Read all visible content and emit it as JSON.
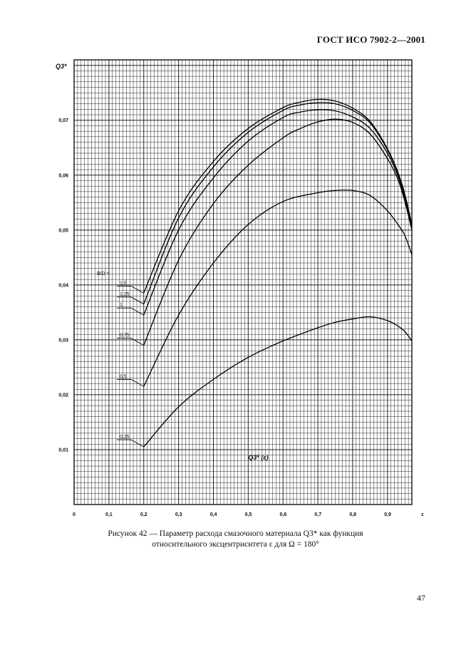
{
  "header": {
    "standard": "ГОСТ ИСО 7902-2—2001"
  },
  "caption": {
    "line1": "Рисунок 42 — Параметр расхода смазочного материала Q3* как функция",
    "line2": "относительного эксцентриситета ε для Ω = 180°"
  },
  "page_number": "47",
  "chart_data": {
    "type": "line",
    "ylabel": "Q3*",
    "xlabel": "ε",
    "curve_label": "Q3* (ε)",
    "legend_title": "B/D =",
    "xlim": [
      0,
      0.97
    ],
    "ylim": [
      0,
      0.081
    ],
    "x_ticks": [
      "0",
      "0,1",
      "0,2",
      "0,3",
      "0,4",
      "0,5",
      "0,6",
      "0,7",
      "0,8",
      "0,9",
      "ε"
    ],
    "y_ticks": [
      "0,01",
      "0,02",
      "0,03",
      "0,04",
      "0,05",
      "0,06",
      "0,07"
    ],
    "grid": true,
    "series": [
      {
        "name": "1,5",
        "x": [
          0.2,
          0.3,
          0.4,
          0.5,
          0.6,
          0.65,
          0.7,
          0.75,
          0.8,
          0.85,
          0.9,
          0.93,
          0.95,
          0.97
        ],
        "y": [
          0.0385,
          0.0535,
          0.0625,
          0.0685,
          0.0723,
          0.0733,
          0.0738,
          0.0735,
          0.0722,
          0.0698,
          0.0648,
          0.0605,
          0.0565,
          0.051
        ]
      },
      {
        "name": "1,25",
        "x": [
          0.2,
          0.3,
          0.4,
          0.5,
          0.6,
          0.65,
          0.7,
          0.75,
          0.8,
          0.85,
          0.9,
          0.93,
          0.95,
          0.97
        ],
        "y": [
          0.0365,
          0.0522,
          0.0615,
          0.0678,
          0.0718,
          0.0728,
          0.0732,
          0.073,
          0.0718,
          0.0695,
          0.0646,
          0.0603,
          0.0563,
          0.0508
        ]
      },
      {
        "name": "1",
        "x": [
          0.2,
          0.3,
          0.4,
          0.5,
          0.6,
          0.65,
          0.7,
          0.75,
          0.8,
          0.85,
          0.9,
          0.93,
          0.95,
          0.97
        ],
        "y": [
          0.0345,
          0.05,
          0.0595,
          0.0662,
          0.0705,
          0.0715,
          0.0719,
          0.0717,
          0.0706,
          0.0685,
          0.064,
          0.0598,
          0.0558,
          0.0505
        ]
      },
      {
        "name": "0,75",
        "x": [
          0.2,
          0.3,
          0.4,
          0.5,
          0.6,
          0.65,
          0.7,
          0.75,
          0.8,
          0.85,
          0.9,
          0.93,
          0.95,
          0.97
        ],
        "y": [
          0.029,
          0.0445,
          0.0548,
          0.0618,
          0.0668,
          0.0685,
          0.0697,
          0.0702,
          0.0696,
          0.0675,
          0.063,
          0.0592,
          0.0552,
          0.05
        ]
      },
      {
        "name": "0,5",
        "x": [
          0.2,
          0.3,
          0.4,
          0.5,
          0.6,
          0.7,
          0.75,
          0.8,
          0.85,
          0.9,
          0.93,
          0.95,
          0.97
        ],
        "y": [
          0.0215,
          0.0345,
          0.044,
          0.051,
          0.0552,
          0.0568,
          0.0572,
          0.0572,
          0.0563,
          0.0535,
          0.051,
          0.049,
          0.0455
        ]
      },
      {
        "name": "0,25",
        "x": [
          0.2,
          0.3,
          0.4,
          0.5,
          0.6,
          0.7,
          0.75,
          0.8,
          0.85,
          0.9,
          0.93,
          0.95,
          0.97
        ],
        "y": [
          0.0105,
          0.0178,
          0.0228,
          0.0268,
          0.0298,
          0.0322,
          0.0332,
          0.0338,
          0.0342,
          0.0335,
          0.0325,
          0.0315,
          0.0298
        ]
      }
    ]
  }
}
